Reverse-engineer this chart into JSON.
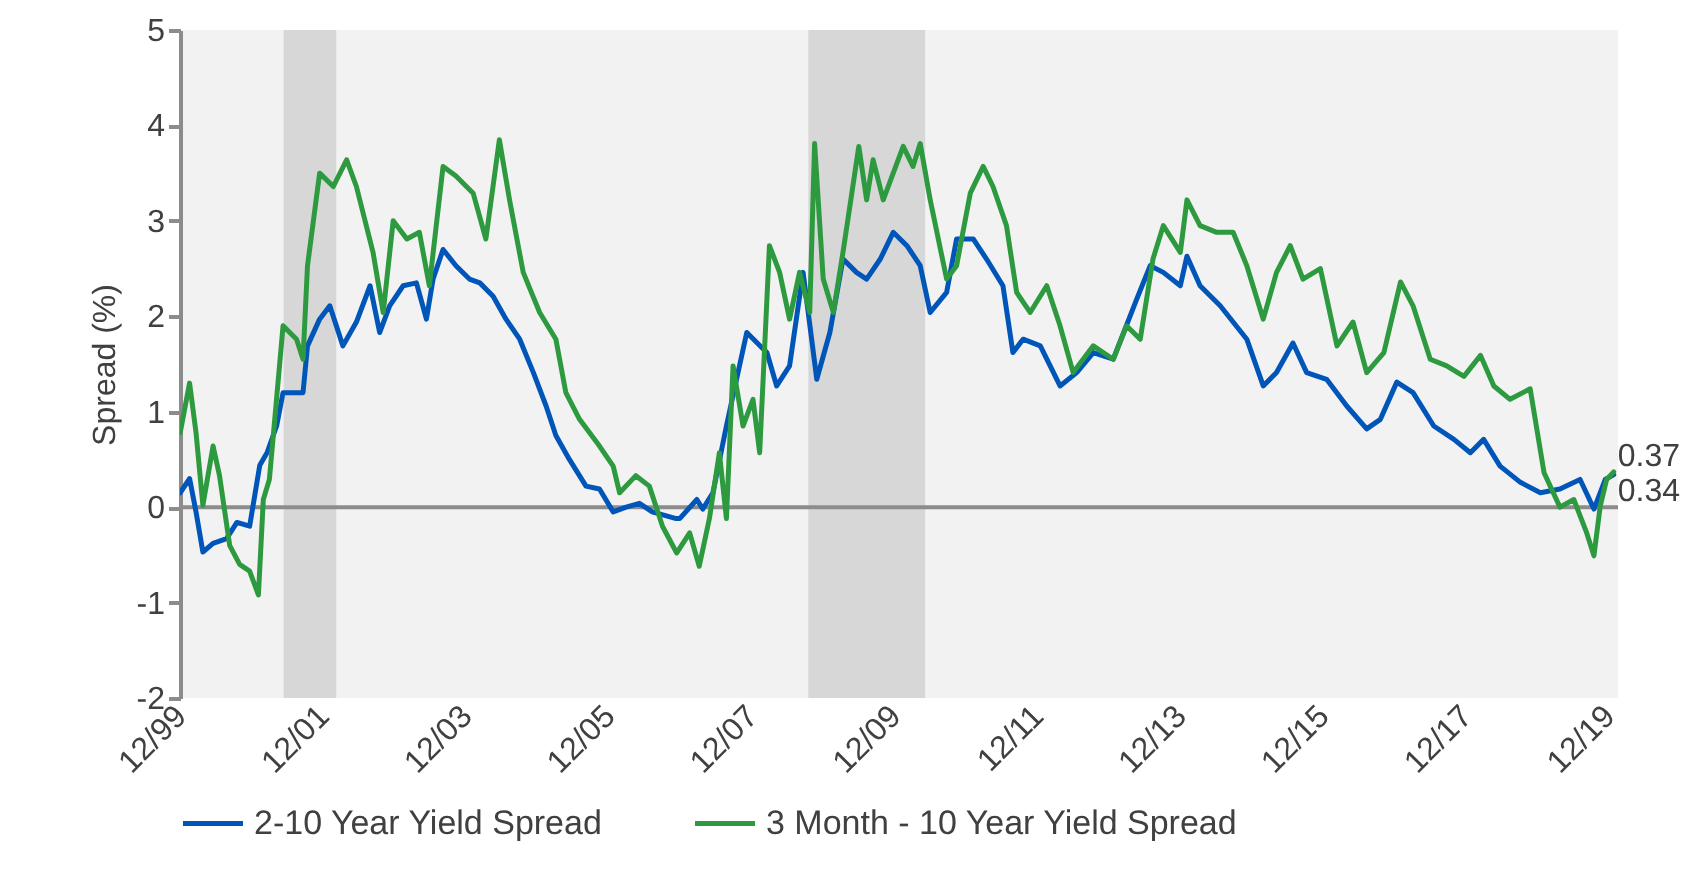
{
  "chart_data": {
    "type": "line",
    "ylabel": "Spread (%)",
    "xlim": [
      "1999-12-01",
      "2020-01-18"
    ],
    "xticks": [
      {
        "value": "1999-12-01",
        "label": "12/99"
      },
      {
        "value": "2001-12-01",
        "label": "12/01"
      },
      {
        "value": "2003-12-01",
        "label": "12/03"
      },
      {
        "value": "2005-12-01",
        "label": "12/05"
      },
      {
        "value": "2007-12-01",
        "label": "12/07"
      },
      {
        "value": "2009-12-01",
        "label": "12/09"
      },
      {
        "value": "2011-12-01",
        "label": "12/11"
      },
      {
        "value": "2013-12-01",
        "label": "12/13"
      },
      {
        "value": "2015-12-01",
        "label": "12/15"
      },
      {
        "value": "2017-12-01",
        "label": "12/17"
      },
      {
        "value": "2019-12-01",
        "label": "12/19"
      }
    ],
    "ylim": [
      -2,
      5
    ],
    "yticks": [
      -2,
      -1,
      0,
      1,
      2,
      3,
      4,
      5
    ],
    "grid": false,
    "legend": "bottom",
    "series": [
      {
        "name": "2-10 Year Yield Spread",
        "color": "#0055b8",
        "x": [
          "1999-12-02",
          "2000-01-19",
          "2000-02-21",
          "2000-03-27",
          "2000-05-18",
          "2000-07-26",
          "2000-09-17",
          "2000-11-21",
          "2001-01-12",
          "2001-02-18",
          "2001-04-08",
          "2001-05-11",
          "2001-08-21",
          "2001-09-13",
          "2001-11-14",
          "2002-01-05",
          "2002-03-13",
          "2002-05-21",
          "2002-07-30",
          "2002-09-17",
          "2002-11-07",
          "2003-01-15",
          "2003-03-24",
          "2003-05-14",
          "2003-06-17",
          "2003-08-07",
          "2003-10-12",
          "2003-12-20",
          "2004-02-11",
          "2004-04-19",
          "2004-06-24",
          "2004-09-02",
          "2004-11-11",
          "2005-01-15",
          "2005-03-06",
          "2005-05-14",
          "2005-08-07",
          "2005-10-15",
          "2005-12-24",
          "2006-02-28",
          "2006-05-07",
          "2006-07-12",
          "2006-11-11",
          "2006-11-29",
          "2007-02-25",
          "2007-03-27",
          "2007-05-18",
          "2007-07-26",
          "2007-11-07",
          "2008-02-18",
          "2008-04-08",
          "2008-06-13",
          "2008-08-21",
          "2008-10-30",
          "2009-01-05",
          "2009-03-13",
          "2009-05-21",
          "2009-07-12",
          "2009-09-20",
          "2009-11-25",
          "2010-02-03",
          "2010-04-12",
          "2010-06-02",
          "2010-08-25",
          "2010-10-15",
          "2011-01-08",
          "2011-03-17",
          "2011-06-09",
          "2011-07-30",
          "2011-09-20",
          "2011-12-17",
          "2012-03-27",
          "2012-06-20",
          "2012-09-13",
          "2012-12-24",
          "2013-04-23",
          "2013-07-01",
          "2013-09-06",
          "2013-12-02",
          "2014-01-05",
          "2014-03-13",
          "2014-06-24",
          "2014-11-07",
          "2015-01-30",
          "2015-04-08",
          "2015-07-01",
          "2015-09-09",
          "2015-12-20",
          "2016-04-01",
          "2016-07-12",
          "2016-09-20",
          "2016-12-13",
          "2017-03-06",
          "2017-06-20",
          "2017-10-01",
          "2017-12-24",
          "2018-03-02",
          "2018-05-25",
          "2018-09-06",
          "2018-12-17",
          "2019-03-27",
          "2019-07-08",
          "2019-09-17",
          "2019-11-14",
          "2019-12-27"
        ],
        "values": [
          0.15,
          0.3,
          -0.05,
          -0.47,
          -0.38,
          -0.33,
          -0.16,
          -0.2,
          0.44,
          0.57,
          0.85,
          1.2,
          1.2,
          1.69,
          1.97,
          2.11,
          1.69,
          1.94,
          2.32,
          1.83,
          2.11,
          2.32,
          2.35,
          1.97,
          2.39,
          2.7,
          2.53,
          2.39,
          2.35,
          2.21,
          1.97,
          1.76,
          1.41,
          1.06,
          0.75,
          0.5,
          0.22,
          0.19,
          -0.05,
          0.0,
          0.04,
          -0.05,
          -0.12,
          -0.12,
          0.08,
          -0.02,
          0.15,
          0.85,
          1.83,
          1.62,
          1.27,
          1.48,
          2.46,
          1.34,
          1.83,
          2.6,
          2.46,
          2.39,
          2.6,
          2.88,
          2.74,
          2.53,
          2.04,
          2.25,
          2.81,
          2.81,
          2.6,
          2.32,
          1.62,
          1.76,
          1.69,
          1.27,
          1.41,
          1.62,
          1.55,
          2.18,
          2.53,
          2.46,
          2.32,
          2.63,
          2.32,
          2.11,
          1.76,
          1.27,
          1.41,
          1.72,
          1.41,
          1.34,
          1.06,
          0.82,
          0.92,
          1.31,
          1.2,
          0.85,
          0.71,
          0.57,
          0.71,
          0.43,
          0.26,
          0.15,
          0.19,
          0.29,
          -0.02,
          0.29,
          0.34
        ]
      },
      {
        "name": "3 Month - 10 Year Yield Spread",
        "color": "#2e9a40",
        "x": [
          "1999-12-02",
          "2000-01-19",
          "2000-02-21",
          "2000-03-27",
          "2000-05-18",
          "2000-06-20",
          "2000-08-11",
          "2000-10-01",
          "2000-11-21",
          "2001-01-05",
          "2001-01-30",
          "2001-03-02",
          "2001-05-11",
          "2001-07-19",
          "2001-08-21",
          "2001-09-13",
          "2001-11-14",
          "2002-01-23",
          "2002-04-01",
          "2002-05-21",
          "2002-08-14",
          "2002-10-05",
          "2002-11-25",
          "2003-02-03",
          "2003-04-08",
          "2003-05-29",
          "2003-08-07",
          "2003-10-12",
          "2004-01-08",
          "2004-03-13",
          "2004-05-21",
          "2004-07-12",
          "2004-09-20",
          "2004-12-13",
          "2005-03-06",
          "2005-04-26",
          "2005-07-05",
          "2005-10-15",
          "2005-12-24",
          "2006-01-26",
          "2006-04-19",
          "2006-06-27",
          "2006-09-02",
          "2006-11-14",
          "2007-01-19",
          "2007-03-09",
          "2007-04-30",
          "2007-06-20",
          "2007-07-26",
          "2007-08-29",
          "2007-10-19",
          "2007-12-09",
          "2008-01-12",
          "2008-03-02",
          "2008-04-23",
          "2008-06-13",
          "2008-08-03",
          "2008-09-24",
          "2008-10-19",
          "2008-12-02",
          "2009-01-23",
          "2009-03-13",
          "2009-06-02",
          "2009-07-12",
          "2009-08-14",
          "2009-10-05",
          "2009-11-25",
          "2010-01-15",
          "2010-03-06",
          "2010-04-12",
          "2010-06-02",
          "2010-08-25",
          "2010-10-15",
          "2010-12-24",
          "2011-02-28",
          "2011-04-19",
          "2011-06-27",
          "2011-08-18",
          "2011-10-26",
          "2012-01-19",
          "2012-03-27",
          "2012-06-02",
          "2012-09-13",
          "2012-12-24",
          "2013-03-02",
          "2013-05-11",
          "2013-07-15",
          "2013-09-06",
          "2013-12-02",
          "2014-01-05",
          "2014-03-13",
          "2014-06-06",
          "2014-08-29",
          "2014-11-07",
          "2015-01-30",
          "2015-04-08",
          "2015-06-17",
          "2015-08-21",
          "2015-11-18",
          "2016-02-11",
          "2016-05-03",
          "2016-07-12",
          "2016-10-08",
          "2017-01-01",
          "2017-03-06",
          "2017-06-02",
          "2017-08-25",
          "2017-11-21",
          "2018-02-14",
          "2018-04-23",
          "2018-07-15",
          "2018-10-26",
          "2019-01-05",
          "2019-03-27",
          "2019-06-06",
          "2019-08-11",
          "2019-09-17",
          "2019-10-19",
          "2019-11-21",
          "2019-12-27"
        ],
        "values": [
          0.78,
          1.3,
          0.78,
          0.02,
          0.64,
          0.33,
          -0.4,
          -0.6,
          -0.67,
          -0.92,
          0.08,
          0.29,
          1.9,
          1.76,
          1.55,
          2.53,
          3.5,
          3.36,
          3.64,
          3.36,
          2.67,
          2.04,
          3.0,
          2.81,
          2.88,
          2.32,
          3.57,
          3.47,
          3.29,
          2.81,
          3.85,
          3.22,
          2.46,
          2.04,
          1.76,
          1.2,
          0.92,
          0.64,
          0.43,
          0.15,
          0.33,
          0.22,
          -0.2,
          -0.48,
          -0.27,
          -0.62,
          -0.12,
          0.57,
          -0.12,
          1.48,
          0.85,
          1.13,
          0.57,
          2.74,
          2.46,
          1.97,
          2.46,
          2.04,
          3.81,
          2.39,
          2.04,
          2.67,
          3.78,
          3.22,
          3.64,
          3.22,
          3.5,
          3.78,
          3.57,
          3.81,
          3.22,
          2.39,
          2.53,
          3.29,
          3.57,
          3.36,
          2.95,
          2.25,
          2.04,
          2.32,
          1.9,
          1.41,
          1.69,
          1.55,
          1.9,
          1.76,
          2.6,
          2.95,
          2.67,
          3.22,
          2.95,
          2.88,
          2.88,
          2.53,
          1.97,
          2.46,
          2.74,
          2.39,
          2.5,
          1.69,
          1.94,
          1.41,
          1.62,
          2.36,
          2.11,
          1.55,
          1.48,
          1.37,
          1.59,
          1.27,
          1.13,
          1.24,
          0.36,
          0.0,
          0.08,
          -0.27,
          -0.51,
          0.01,
          0.29,
          0.37
        ]
      }
    ],
    "bands": [
      {
        "axis": "x",
        "from": "2001-05-14",
        "to": "2002-02-07",
        "color": "#d4d4d4"
      },
      {
        "axis": "x",
        "from": "2008-09-17",
        "to": "2010-05-07",
        "color": "#d4d4d4"
      }
    ],
    "ref_lines": [
      {
        "axis": "y",
        "value": 0,
        "color": "#8c8c8c"
      }
    ],
    "annotations": [
      {
        "text": "0.37",
        "x": "2019-12-27",
        "y": 0.37
      },
      {
        "text": "0.34",
        "x": "2019-12-27",
        "y": 0.34
      }
    ]
  }
}
